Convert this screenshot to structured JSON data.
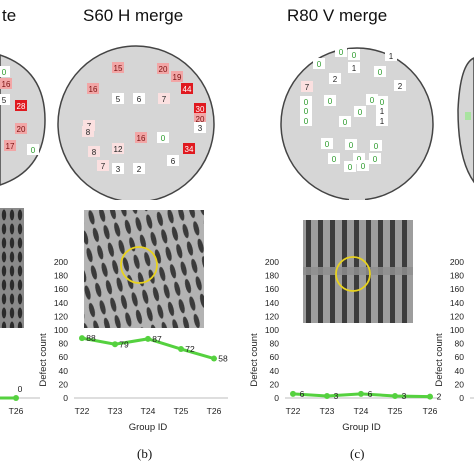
{
  "titles": {
    "left_fragment": "te",
    "middle": "S60 H merge",
    "right": "R80 V merge"
  },
  "captions": {
    "b": "(b)",
    "c": "(c)"
  },
  "axes": {
    "ylabel": "Defect count",
    "xlabel": "Group ID",
    "yticks": [
      "0",
      "20",
      "40",
      "60",
      "80",
      "100",
      "120",
      "140",
      "160",
      "180",
      "200"
    ],
    "categories": [
      "T22",
      "T23",
      "T24",
      "T25",
      "T26"
    ]
  },
  "colors": {
    "line": "#55d13f",
    "wafer": "#d6d6d6",
    "wafer_edge": "#444444",
    "defect_high": "#e0191f",
    "defect_mid": "#f2a6a6",
    "zero_text": "#2a9a2a",
    "marker_circle": "#e8d21e"
  },
  "wafer_a": {
    "labels": [
      "0",
      "16",
      "5",
      "28",
      "20",
      "17",
      "0"
    ]
  },
  "wafer_b": {
    "labels": [
      "15",
      "20",
      "19",
      "16",
      "5",
      "6",
      "44",
      "7",
      "7",
      "30",
      "20",
      "16",
      "8",
      "3",
      "12",
      "0",
      "8",
      "7",
      "34",
      "3",
      "2",
      "6"
    ]
  },
  "wafer_c": {
    "labels": [
      "0",
      "1",
      "2",
      "7",
      "0",
      "0",
      "0",
      "0",
      "2",
      "0",
      "1",
      "0",
      "1",
      "0",
      "0",
      "0",
      "0",
      "0",
      "0",
      "0",
      "0",
      "0",
      "0",
      "0",
      "0",
      "1",
      "0"
    ]
  },
  "chart_data": [
    {
      "type": "line",
      "ylabel": "Defect count",
      "ylim": [
        0,
        200
      ],
      "categories": [
        "T22",
        "T23",
        "T24",
        "T25",
        "T26"
      ],
      "series": [
        {
          "values": [
            null,
            null,
            null,
            null,
            0
          ]
        }
      ],
      "data_labels": [
        "",
        "",
        "",
        "",
        "0"
      ]
    },
    {
      "type": "line",
      "xlabel": "Group ID",
      "ylabel": "Defect count",
      "ylim": [
        0,
        200
      ],
      "categories": [
        "T22",
        "T23",
        "T24",
        "T25",
        "T26"
      ],
      "series": [
        {
          "values": [
            88,
            79,
            87,
            72,
            58
          ]
        }
      ],
      "data_labels": [
        "88",
        "79",
        "87",
        "72",
        "58"
      ]
    },
    {
      "type": "line",
      "xlabel": "Group ID",
      "ylabel": "Defect count",
      "ylim": [
        0,
        200
      ],
      "categories": [
        "T22",
        "T23",
        "T24",
        "T25",
        "T26"
      ],
      "series": [
        {
          "values": [
            6,
            3,
            6,
            3,
            2
          ]
        }
      ],
      "data_labels": [
        "6",
        "3",
        "6",
        "3",
        "2"
      ]
    },
    {
      "type": "line",
      "ylabel": "Defect count",
      "ylim": [
        0,
        200
      ],
      "categories": [],
      "series": []
    }
  ]
}
